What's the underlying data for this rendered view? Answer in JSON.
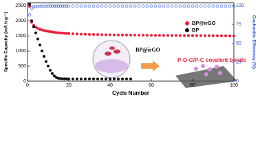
{
  "chart_data": {
    "type": "scatter",
    "xlabel": "Cycle Number",
    "ylabel": "Specific Capacity (mA h g⁻¹)",
    "y2label": "Coulombic Efficiency (%)",
    "xlim": [
      0,
      100
    ],
    "xticks": [
      0,
      20,
      40,
      60,
      80,
      100
    ],
    "ylim": [
      0,
      2600
    ],
    "yticks": [
      0,
      500,
      1000,
      1500,
      2000,
      2500
    ],
    "y2lim": [
      0,
      104
    ],
    "y2ticks": [
      0,
      25,
      50,
      75,
      100
    ],
    "y2color": "#2b4fd6",
    "x": [
      1,
      2,
      3,
      4,
      5,
      6,
      7,
      8,
      9,
      10,
      11,
      12,
      13,
      14,
      15,
      16,
      17,
      18,
      19,
      20,
      22,
      24,
      26,
      28,
      30,
      32,
      34,
      36,
      38,
      40,
      42,
      44,
      46,
      48,
      50,
      52,
      54,
      56,
      58,
      60,
      62,
      64,
      66,
      68,
      70,
      72,
      74,
      76,
      78,
      80,
      82,
      84,
      86,
      88,
      90,
      92,
      94,
      96,
      98,
      100
    ],
    "series": [
      {
        "name": "BP@irGO",
        "color": "#e8203a",
        "values": [
          2480,
          1950,
          1850,
          1790,
          1750,
          1720,
          1700,
          1680,
          1665,
          1650,
          1640,
          1630,
          1620,
          1612,
          1605,
          1598,
          1592,
          1587,
          1582,
          1578,
          1570,
          1565,
          1560,
          1556,
          1552,
          1548,
          1545,
          1542,
          1539,
          1536,
          1534,
          1532,
          1530,
          1528,
          1526,
          1524,
          1522,
          1521,
          1520,
          1519,
          1518,
          1517,
          1516,
          1515,
          1514,
          1513,
          1512,
          1511,
          1510,
          1509,
          1508,
          1507,
          1506,
          1505,
          1504,
          1503,
          1502,
          1501,
          1500,
          1500
        ]
      },
      {
        "name": "BP",
        "color": "#111111",
        "values": [
          2550,
          2000,
          1800,
          1600,
          1400,
          1200,
          1000,
          820,
          650,
          500,
          360,
          250,
          170,
          120,
          95,
          85,
          80,
          78,
          76,
          75,
          74,
          74,
          74,
          74,
          74,
          74,
          74,
          74,
          74,
          74,
          74,
          74,
          74,
          74,
          74,
          null,
          null,
          null,
          null,
          null,
          null,
          null,
          null,
          null,
          null,
          null,
          null,
          null,
          null,
          null,
          null,
          null,
          null,
          null,
          null,
          null,
          null,
          null,
          null,
          null
        ]
      },
      {
        "color": "#2b4fd6",
        "axis": "y2",
        "values": [
          88,
          97,
          98.5,
          99,
          99.2,
          99.3,
          99.4,
          99.4,
          99.5,
          99.5,
          99.5,
          99.5,
          99.5,
          99.5,
          99.5,
          99.5,
          99.5,
          99.5,
          99.5,
          99.5,
          99.5,
          99.5,
          99.5,
          99.5,
          99.5,
          99.5,
          99.5,
          99.5,
          99.5,
          99.5,
          99.5,
          99.5,
          99.5,
          99.5,
          99.5,
          99.5,
          99.5,
          99.5,
          99.5,
          99.5,
          99.5,
          99.5,
          99.5,
          99.5,
          99.5,
          99.5,
          99.5,
          99.5,
          99.5,
          99.5,
          99.5,
          99.5,
          99.5,
          99.5,
          99.5,
          99.5,
          99.5,
          99.5,
          99.5,
          99.5
        ]
      }
    ],
    "annotations": [
      "BP@irGO",
      "P-O-C/P-C covalent bonds"
    ],
    "annotation_color": "#e8203a"
  }
}
